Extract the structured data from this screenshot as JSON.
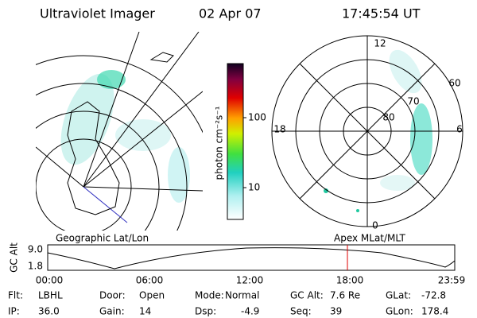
{
  "header": {
    "title": "Ultraviolet Imager",
    "date": "02 Apr 07",
    "time": "17:45:54 UT"
  },
  "colorbar": {
    "label": "photon cm⁻²s⁻¹",
    "ticks": [
      100,
      10
    ]
  },
  "polar": {
    "mlt_labels": [
      "12",
      "18",
      "6",
      "0"
    ],
    "lat_labels": [
      "60",
      "70",
      "80"
    ]
  },
  "captions": {
    "left": "Geographic Lat/Lon",
    "right": "Apex MLat/MLT"
  },
  "timeline": {
    "axis_label": "GC Alt",
    "yticks": [
      "9.0",
      "1.8"
    ],
    "xticks": [
      "00:00",
      "06:00",
      "12:00",
      "18:00",
      "23:59"
    ]
  },
  "status": [
    [
      {
        "label": "Flt:",
        "value": "LBHL"
      },
      {
        "label": "Door:",
        "value": "Open"
      },
      {
        "label": "Mode:",
        "value": "Normal"
      },
      {
        "label": "GC Alt:",
        "value": "7.6 Re"
      },
      {
        "label": "GLat:",
        "value": "-72.8"
      }
    ],
    [
      {
        "label": "IP:",
        "value": "36.0"
      },
      {
        "label": "Gain:",
        "value": "14"
      },
      {
        "label": "Dsp:",
        "value": "-4.9"
      },
      {
        "label": "Seq:",
        "value": "39"
      },
      {
        "label": "GLon:",
        "value": "178.4"
      }
    ]
  ]
}
